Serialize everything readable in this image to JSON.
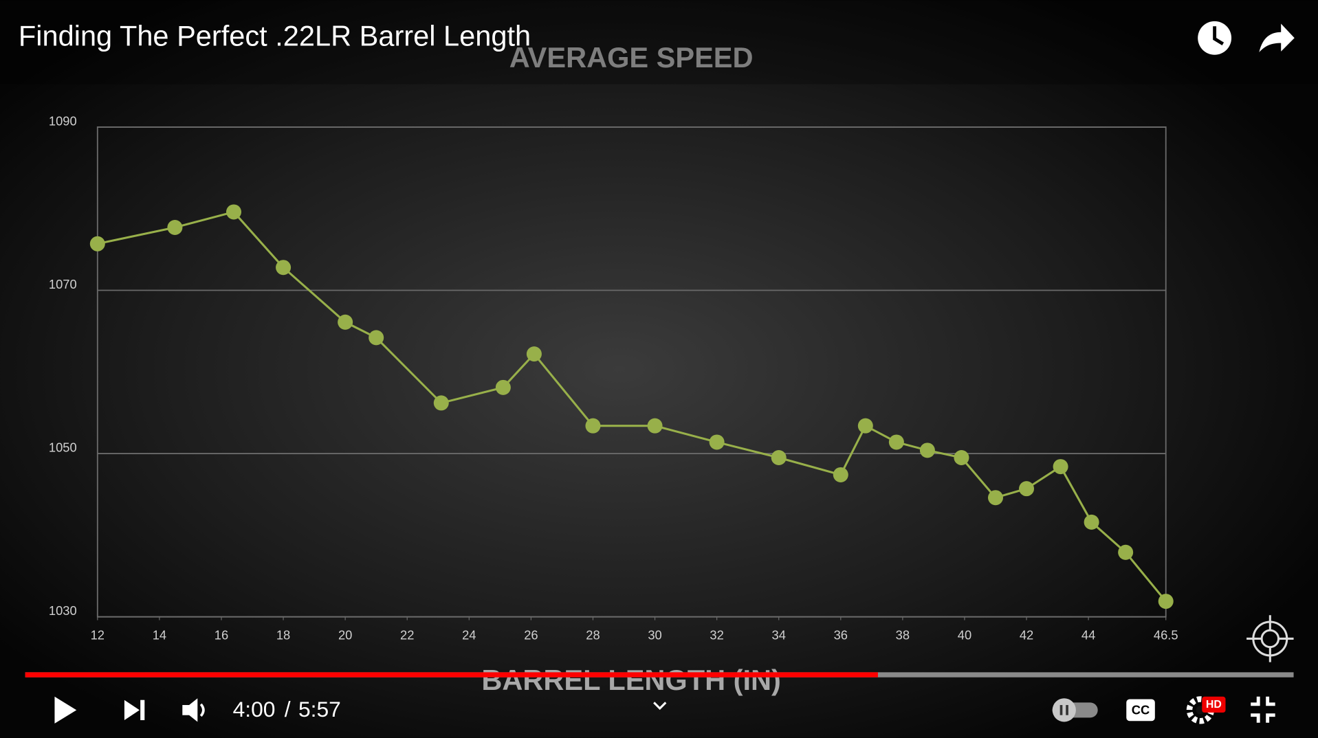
{
  "video": {
    "title": "Finding The Perfect .22LR Barrel Length"
  },
  "player": {
    "time_current": "4:00",
    "time_separator": "/",
    "time_duration": "5:57",
    "cc": "CC",
    "hd": "HD"
  },
  "chart_data": {
    "type": "line",
    "title": "AVERAGE SPEED",
    "xlabel": "BARREL LENGTH (IN)",
    "x": [
      12,
      14.5,
      16.4,
      18,
      20,
      21,
      23.1,
      25.1,
      26.1,
      28,
      30,
      32,
      34,
      36,
      36.8,
      37.8,
      38.8,
      39.9,
      41,
      42,
      43.1,
      44.1,
      45.2,
      46.5
    ],
    "values": [
      1075.7,
      1077.7,
      1079.6,
      1072.8,
      1066.1,
      1064.2,
      1056.2,
      1058.1,
      1062.2,
      1053.4,
      1053.4,
      1051.4,
      1049.5,
      1047.4,
      1053.4,
      1051.4,
      1050.4,
      1049.5,
      1044.6,
      1045.7,
      1048.4,
      1041.6,
      1037.9,
      1031.9
    ],
    "color": "#98b04a",
    "xlim": [
      12,
      46.5
    ],
    "ylim": [
      1030,
      1090
    ],
    "xticks": [
      12,
      14,
      16,
      18,
      20,
      22,
      24,
      26,
      28,
      30,
      32,
      34,
      36,
      38,
      40,
      42,
      44,
      46.5
    ],
    "yticks": [
      1030,
      1050,
      1070,
      1090
    ],
    "grid": true
  }
}
